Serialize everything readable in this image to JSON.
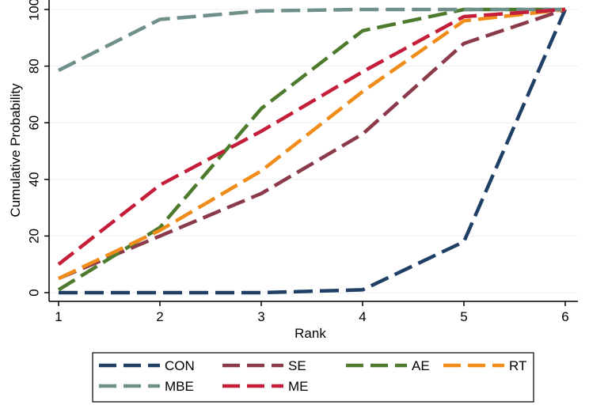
{
  "chart_data": {
    "type": "line",
    "title": "",
    "xlabel": "Rank",
    "ylabel": "Cumulative Probability",
    "xlim": [
      1,
      6
    ],
    "ylim": [
      0,
      100
    ],
    "xticks": [
      1,
      2,
      3,
      4,
      5,
      6
    ],
    "yticks": [
      0,
      20,
      40,
      60,
      80,
      100
    ],
    "grid": "horizontal",
    "legend_position": "bottom",
    "x": [
      1,
      2,
      3,
      4,
      5,
      6
    ],
    "series": [
      {
        "name": "CON",
        "color": "#1f3f66",
        "values": [
          0,
          0,
          0,
          1,
          18,
          100
        ]
      },
      {
        "name": "SE",
        "color": "#8b3a4a",
        "values": [
          5,
          20,
          35,
          56,
          88,
          100
        ]
      },
      {
        "name": "AE",
        "color": "#4e7a2e",
        "values": [
          1,
          23,
          65,
          92.5,
          100,
          100
        ]
      },
      {
        "name": "RT",
        "color": "#f08c1a",
        "values": [
          5,
          22,
          43,
          71,
          96,
          100
        ]
      },
      {
        "name": "MBE",
        "color": "#6f8f8a",
        "values": [
          78.5,
          96.5,
          99.5,
          100,
          100,
          100
        ]
      },
      {
        "name": "ME",
        "color": "#c41e3a",
        "values": [
          10,
          38,
          57,
          78,
          97.5,
          100
        ]
      }
    ]
  }
}
